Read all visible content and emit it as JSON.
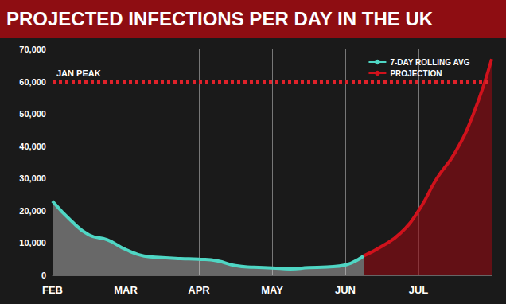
{
  "chart_data": {
    "type": "line",
    "title": "PROJECTED INFECTIONS PER DAY IN THE UK",
    "categories": [
      "FEB",
      null,
      null,
      null,
      "MAR",
      null,
      null,
      null,
      "APR",
      null,
      null,
      null,
      "MAY",
      null,
      null,
      null,
      "JUN",
      null,
      null,
      null,
      "JUL",
      null,
      null,
      null,
      null
    ],
    "series": [
      {
        "name": "7-DAY ROLLING AVG",
        "color": "#4fd6c4",
        "values": [
          23000,
          17000,
          12500,
          11000,
          8000,
          6000,
          5500,
          5200,
          5000,
          4500,
          3000,
          2500,
          2300,
          2000,
          2400,
          2600,
          3200,
          6000,
          null,
          null,
          null,
          null,
          null,
          null,
          null
        ]
      },
      {
        "name": "PROJECTION",
        "color": "#d0121c",
        "values": [
          null,
          null,
          null,
          null,
          null,
          null,
          null,
          null,
          null,
          null,
          null,
          null,
          null,
          null,
          null,
          null,
          null,
          6000,
          9000,
          13000,
          20000,
          30000,
          38000,
          50000,
          67000
        ]
      }
    ],
    "annotations": [
      {
        "text": "JAN PEAK",
        "y": 60000
      }
    ],
    "ylim": [
      0,
      70000
    ],
    "yticks": [
      0,
      {
        "value": 10000,
        "label": "10,000"
      },
      {
        "value": 20000,
        "label": "20,000"
      },
      {
        "value": 30000,
        "label": "30,000"
      },
      {
        "value": 40000,
        "label": "40,000"
      },
      {
        "value": 50000,
        "label": "50,000"
      },
      {
        "value": 60000,
        "label": "60,000"
      },
      {
        "value": 70000,
        "label": "70,000"
      }
    ],
    "grid": true,
    "legend": "top-right"
  }
}
